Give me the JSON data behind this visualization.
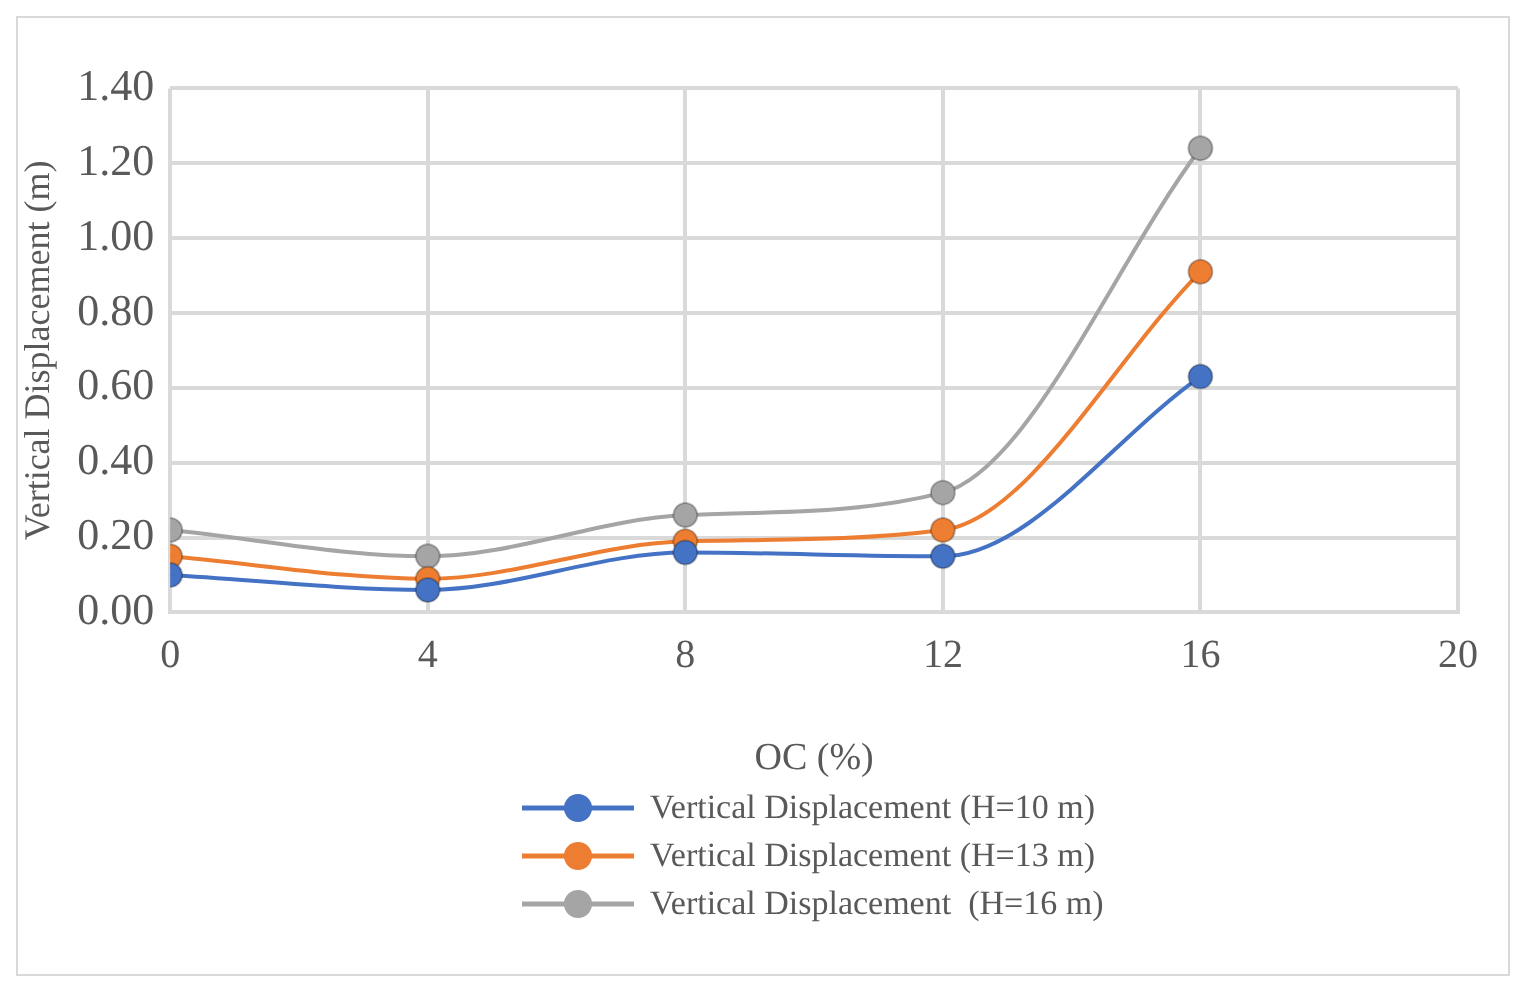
{
  "chart_data": {
    "type": "line",
    "xlabel": "OC (%)",
    "ylabel": "Vertical Displacement (m)",
    "x": [
      0,
      4,
      8,
      12,
      16
    ],
    "series": [
      {
        "name": "Vertical Displacement (H=10 m)",
        "color": "#4472c4",
        "values": [
          0.1,
          0.06,
          0.16,
          0.15,
          0.63
        ]
      },
      {
        "name": "Vertical Displacement (H=13 m)",
        "color": "#ed7d31",
        "values": [
          0.15,
          0.09,
          0.19,
          0.22,
          0.91
        ]
      },
      {
        "name": "Vertical Displacement  (H=16 m)",
        "color": "#a5a5a5",
        "values": [
          0.22,
          0.15,
          0.26,
          0.32,
          1.24
        ]
      }
    ],
    "xlim": [
      0,
      20
    ],
    "xticks": [
      0,
      4,
      8,
      12,
      16,
      20
    ],
    "ylim": [
      0,
      1.4
    ],
    "yticks": [
      {
        "value": 0,
        "label": "0.00"
      },
      {
        "value": 0.2,
        "label": "0.20"
      },
      {
        "value": 0.4,
        "label": "0.40"
      },
      {
        "value": 0.6,
        "label": "0.60"
      },
      {
        "value": 0.8,
        "label": "0.80"
      },
      {
        "value": 1.0,
        "label": "1.00"
      },
      {
        "value": 1.2,
        "label": "1.20"
      },
      {
        "value": 1.4,
        "label": "1.40"
      }
    ],
    "grid": true,
    "legend": "bottom",
    "marker": "circle",
    "line_style": "solid"
  }
}
